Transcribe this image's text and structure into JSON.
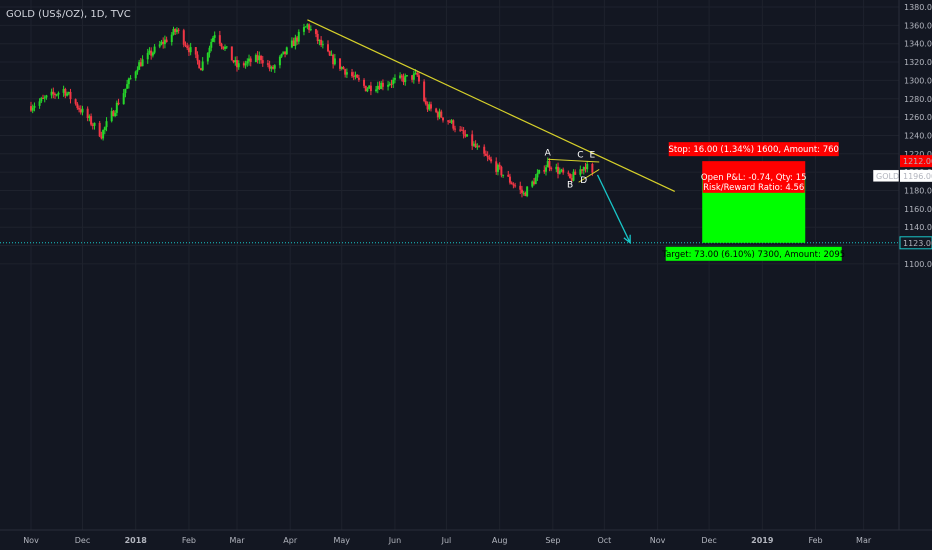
{
  "colors": {
    "background": "#131722",
    "bull": "#26d62a",
    "bear": "#f23645",
    "trendline": "#d6d02a",
    "projection": "#18c6c8",
    "axis_text": "#b2b5be",
    "stop_zone": "#ff0000",
    "target_zone": "#00ff00",
    "price_label_bg": "#ffffff"
  },
  "chart_data": {
    "type": "candlestick",
    "title": "GOLD (US$/OZ), 1D, TVC",
    "y_axis": {
      "ticks": [
        "1380.00",
        "1360.00",
        "1340.00",
        "1320.00",
        "1300.00",
        "1280.00",
        "1260.00",
        "1240.00",
        "1220.00",
        "1200.00",
        "1180.00",
        "1160.00",
        "1140.00",
        "1120.00",
        "1100.00"
      ],
      "ylim": [
        1094,
        1382
      ]
    },
    "x_axis": {
      "ticks": [
        "Nov",
        "Dec",
        "2018",
        "Feb",
        "Mar",
        "Apr",
        "May",
        "Jun",
        "Jul",
        "Aug",
        "Sep",
        "Oct",
        "Nov",
        "Dec",
        "2019",
        "Feb",
        "Mar"
      ],
      "bold_ticks": [
        "2018",
        "2019"
      ]
    },
    "anchors": [
      {
        "date": "2017-11-01",
        "close": 1272
      },
      {
        "date": "2017-11-20",
        "close": 1290
      },
      {
        "date": "2017-12-12",
        "close": 1241
      },
      {
        "date": "2018-01-02",
        "close": 1316
      },
      {
        "date": "2018-01-25",
        "close": 1355
      },
      {
        "date": "2018-02-08",
        "close": 1315
      },
      {
        "date": "2018-02-16",
        "close": 1352
      },
      {
        "date": "2018-03-01",
        "close": 1315
      },
      {
        "date": "2018-03-15",
        "close": 1325
      },
      {
        "date": "2018-03-21",
        "close": 1311
      },
      {
        "date": "2018-04-11",
        "close": 1360
      },
      {
        "date": "2018-04-24",
        "close": 1325
      },
      {
        "date": "2018-05-15",
        "close": 1292
      },
      {
        "date": "2018-06-14",
        "close": 1305
      },
      {
        "date": "2018-06-19",
        "close": 1272
      },
      {
        "date": "2018-07-03",
        "close": 1255
      },
      {
        "date": "2018-07-19",
        "close": 1225
      },
      {
        "date": "2018-08-15",
        "close": 1176
      },
      {
        "date": "2018-08-29",
        "close": 1210
      },
      {
        "date": "2018-09-11",
        "close": 1192
      },
      {
        "date": "2018-09-20",
        "close": 1208
      },
      {
        "date": "2018-09-24",
        "close": 1196
      }
    ],
    "trendline": {
      "from": {
        "date": "2018-04-11",
        "price": 1366
      },
      "to": {
        "date": "2018-11-11",
        "price": 1179
      }
    },
    "triangle_upper": {
      "from": {
        "date": "2018-08-29",
        "price": 1214
      },
      "to": {
        "date": "2018-09-28",
        "price": 1211
      }
    },
    "triangle_lower": {
      "from": {
        "date": "2018-09-16",
        "price": 1189
      },
      "to": {
        "date": "2018-09-28",
        "price": 1203
      }
    },
    "pattern_points": [
      {
        "label": "A",
        "date": "2018-08-29",
        "price": 1218
      },
      {
        "label": "B",
        "date": "2018-09-11",
        "price": 1183
      },
      {
        "label": "C",
        "date": "2018-09-17",
        "price": 1216
      },
      {
        "label": "D",
        "date": "2018-09-19",
        "price": 1188
      },
      {
        "label": "E",
        "date": "2018-09-24",
        "price": 1216
      }
    ],
    "projection_arrow": {
      "from": {
        "date": "2018-09-27",
        "price": 1197
      },
      "to": {
        "date": "2018-10-16",
        "price": 1123
      }
    },
    "target_line_price": 1123,
    "position": {
      "entry": 1196,
      "stop": 1212,
      "target": 1123,
      "start_date": "2018-11-27",
      "end_date": "2019-01-26",
      "stop_text": "Stop: 16.00 (1.34%) 1600, Amount: 760",
      "pnl_text": "Open P&L: -0.74, Qty: 15",
      "rr_text": "Risk/Reward Ratio: 4.56",
      "target_text": "Target: 73.00 (6.10%) 7300, Amount: 2095"
    },
    "price_labels": {
      "symbol": "GOLD",
      "current": "1196.00",
      "stop": "1212.00",
      "target": "1123.00"
    }
  }
}
